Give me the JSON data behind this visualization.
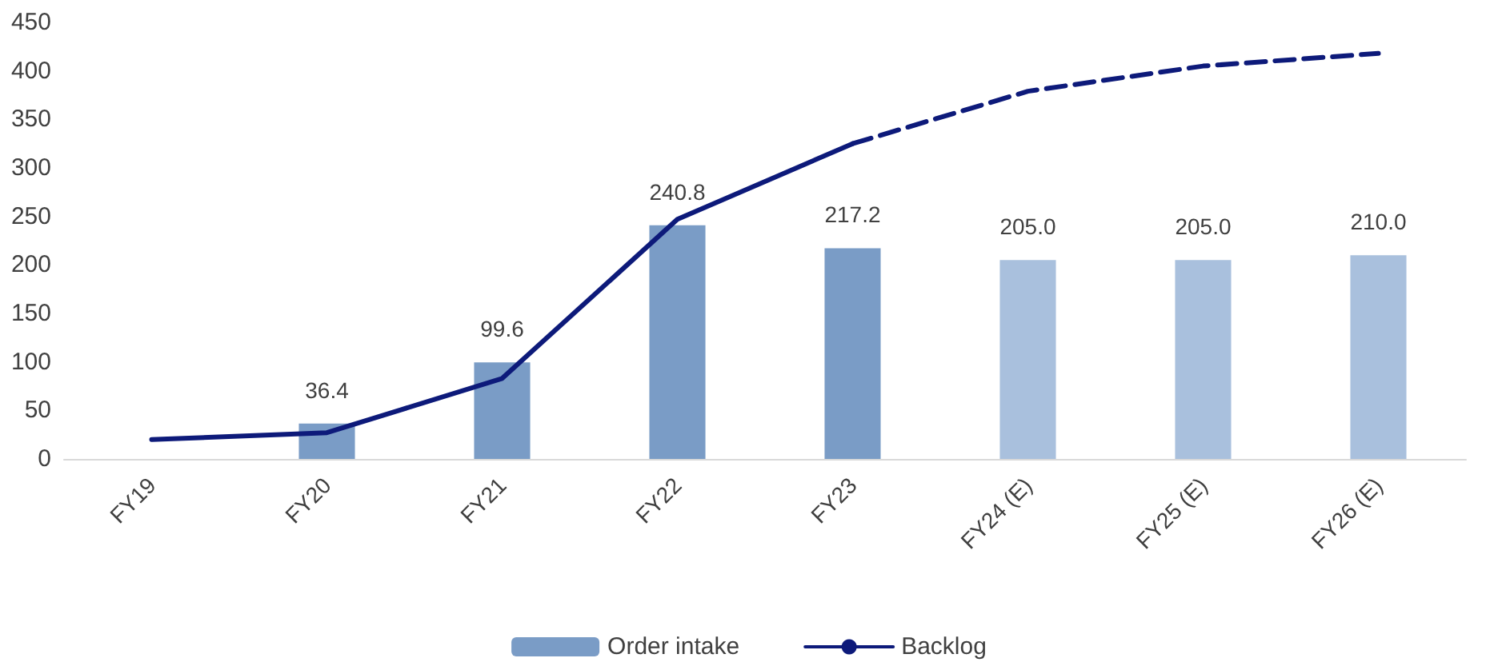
{
  "chart_data": {
    "type": "bar",
    "categories": [
      "FY19",
      "FY20",
      "FY21",
      "FY22",
      "FY23",
      "FY24 (E)",
      "FY25 (E)",
      "FY26 (E)"
    ],
    "series": [
      {
        "name": "Order intake",
        "color": "#7a9cc6",
        "colors": [
          "#7a9cc6",
          "#7a9cc6",
          "#7a9cc6",
          "#7a9cc6",
          "#7a9cc6",
          "#a9c0dd",
          "#a9c0dd",
          "#a9c0dd"
        ],
        "values": [
          null,
          36.4,
          99.6,
          240.8,
          217.2,
          205.0,
          205.0,
          210.0
        ],
        "value_labels": [
          null,
          "36.4",
          "99.6",
          "240.8",
          "217.2",
          "205.0",
          "205.0",
          "210.0"
        ]
      },
      {
        "name": "Backlog",
        "type": "line",
        "color": "#0d1a7a",
        "line_style": "solid",
        "values": [
          20,
          27,
          83,
          247,
          325,
          null,
          null,
          null
        ]
      },
      {
        "type": "line",
        "color": "#0d1a7a",
        "line_style": "dashed",
        "values": [
          null,
          null,
          null,
          null,
          325,
          379,
          405,
          418
        ]
      }
    ],
    "ylim": [
      0,
      450
    ],
    "yticks": [
      0,
      50,
      100,
      150,
      200,
      250,
      300,
      350,
      400,
      450
    ],
    "grid": false,
    "legend": "bottom",
    "marker": "none"
  }
}
